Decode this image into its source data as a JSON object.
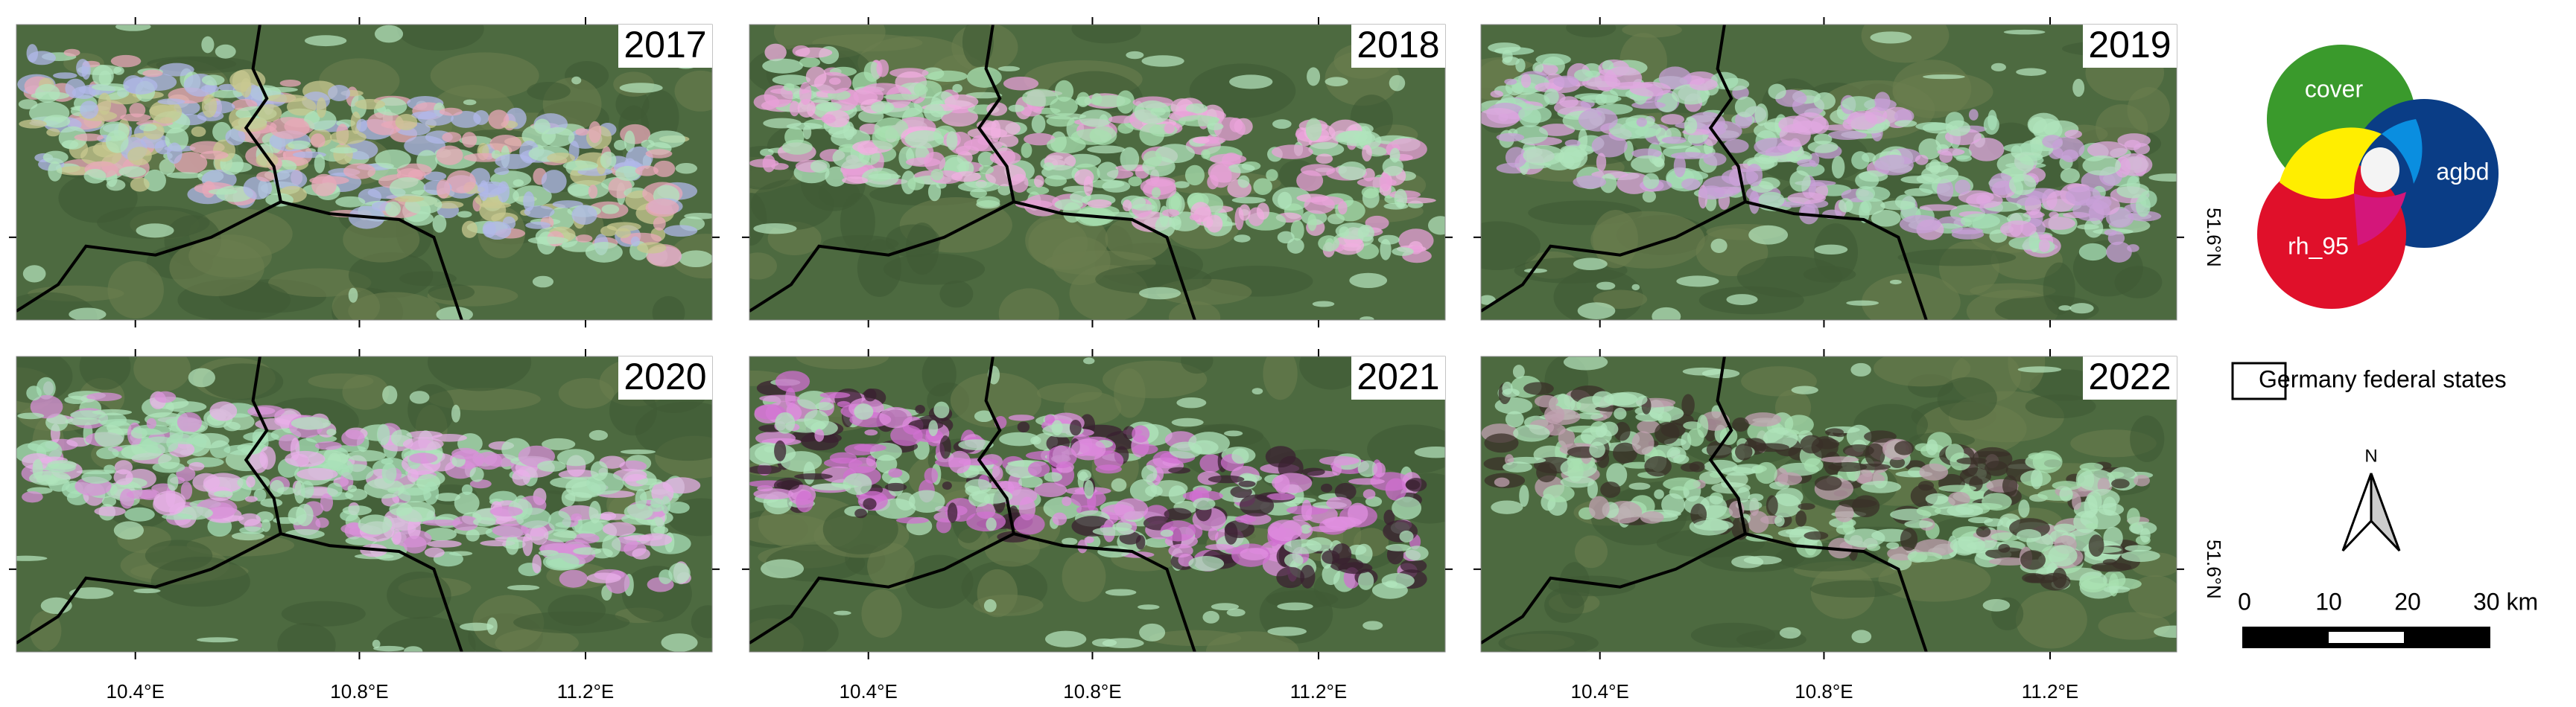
{
  "panels": [
    {
      "year": "2017"
    },
    {
      "year": "2018"
    },
    {
      "year": "2019"
    },
    {
      "year": "2020"
    },
    {
      "year": "2021"
    },
    {
      "year": "2022"
    }
  ],
  "x_axis": {
    "ticks": [
      "10.4°E",
      "10.8°E",
      "11.2°E"
    ]
  },
  "y_axis": {
    "label": "51.6°N"
  },
  "legend": {
    "venn": {
      "green": "cover",
      "blue": "agbd",
      "red": "rh_95"
    },
    "boundary": "Germany federal states"
  },
  "north_arrow": {
    "label": "N"
  },
  "scale_bar": {
    "labels": [
      "0",
      "10",
      "20",
      "30 km"
    ]
  }
}
